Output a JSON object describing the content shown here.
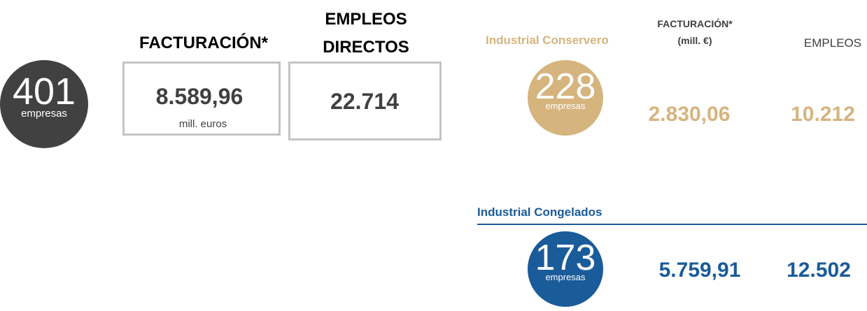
{
  "summary": {
    "companies": "401",
    "companies_label": "empresas",
    "revenue_title": "FACTURACIÓN*",
    "revenue": "8.589,96",
    "revenue_unit": "mill. euros",
    "jobs_title": [
      "EMPLEOS",
      "DIRECTOS"
    ],
    "jobs": "22.714"
  },
  "column_headers": {
    "revenue": [
      "FACTURACIÓN*",
      "(mill. €)"
    ],
    "jobs": "EMPLEOS"
  },
  "segments": [
    {
      "name": "Industrial Conservero",
      "companies": "228",
      "companies_label": "empresas",
      "revenue": "2.830,06",
      "jobs": "10.212",
      "color": "#d6b47e"
    },
    {
      "name": "Industrial Congelados",
      "companies": "173",
      "companies_label": "empresas",
      "revenue": "5.759,91",
      "jobs": "12.502",
      "color": "#1a5b9a"
    }
  ]
}
